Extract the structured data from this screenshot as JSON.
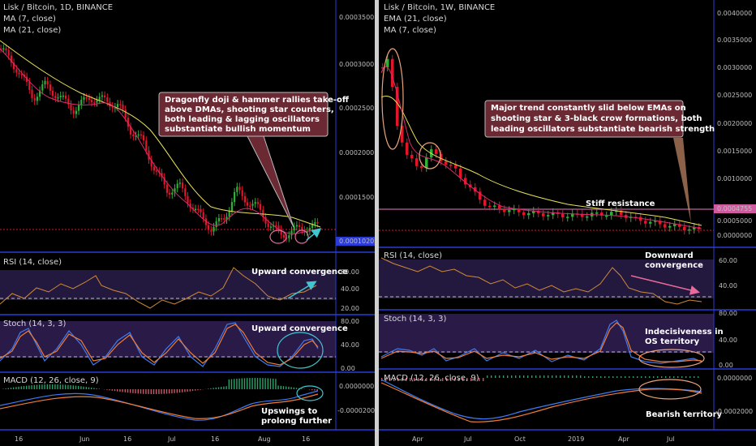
{
  "colors": {
    "bg": "#000000",
    "up": "#2fae3a",
    "down": "#e0162b",
    "ma_fast": "#d92b6e",
    "ma_slow": "#e8e25a",
    "rsi": "#d08a3a",
    "stoch_k": "#3e7bf2",
    "stoch_d": "#f07d35",
    "osc_band": "#2a1a48",
    "pane_border": "#2b3bd8",
    "callout": "#6b2a33",
    "ring_teal": "#3fc6d0",
    "ring_pink": "#e86a9a",
    "ring_salmon": "#e9a27a"
  },
  "left": {
    "title": "Lisk / Bitcoin, 1D, BINANCE",
    "ind1": "MA (7, close)",
    "ind2": "MA (21, close)",
    "price_ticks": [
      "0.0003500",
      "0.0003000",
      "0.0002500",
      "0.0002000",
      "0.0001500"
    ],
    "last_price": "0.0001020",
    "annotation": [
      "Dragonfly doji & hammer rallies take-off",
      "above DMAs, shooting star counters,",
      "both leading & lagging oscillators",
      "substantiate bullish momentum"
    ],
    "rsi": {
      "label": "RSI (14, close)",
      "ticks": [
        "60.00",
        "40.00",
        "20.00"
      ],
      "note": "Upward convergence"
    },
    "stoch": {
      "label": "Stoch (14, 3, 3)",
      "ticks": [
        "80.00",
        "40.00",
        "0.00"
      ],
      "note": "Upward convergence"
    },
    "macd": {
      "label": "MACD (12, 26, close, 9)",
      "ticks": [
        "0.0000000",
        "-0.0000200"
      ],
      "note": [
        "Upswings to",
        "prolong further"
      ]
    },
    "x_ticks": [
      "16",
      "Jun",
      "16",
      "Jul",
      "16",
      "Aug",
      "16"
    ]
  },
  "right": {
    "title": "Lisk / Bitcoin, 1W, BINANCE",
    "ind1": "EMA (21, close)",
    "ind2": "MA (7, close)",
    "price_ticks": [
      "0.0040000",
      "0.0035000",
      "0.0030000",
      "0.0025000",
      "0.0020000",
      "0.0015000",
      "0.0010000",
      "0.0005000",
      "0.0000000"
    ],
    "last_price": "0.0004755",
    "annotation": [
      "Major trend constantly slid below EMAs on",
      "shooting star & 3-black crow formations, both",
      "leading oscillators substantiate bearish strength"
    ],
    "resistance": "Stiff resistance",
    "rsi": {
      "label": "RSI (14, close)",
      "ticks": [
        "60.00",
        "40.00"
      ],
      "note": [
        "Downward",
        "convergence"
      ]
    },
    "stoch": {
      "label": "Stoch (14, 3, 3)",
      "ticks": [
        "80.00",
        "40.00",
        "0.00"
      ],
      "note": [
        "Indecisiveness in",
        "OS territory"
      ]
    },
    "macd": {
      "label": "MACD (12, 26, close, 9)",
      "ticks": [
        "0.0000000",
        "-0.0002000"
      ],
      "note": "Bearish territory"
    },
    "x_ticks": [
      "Apr",
      "Jul",
      "Oct",
      "2019",
      "Apr",
      "Jul"
    ]
  }
}
